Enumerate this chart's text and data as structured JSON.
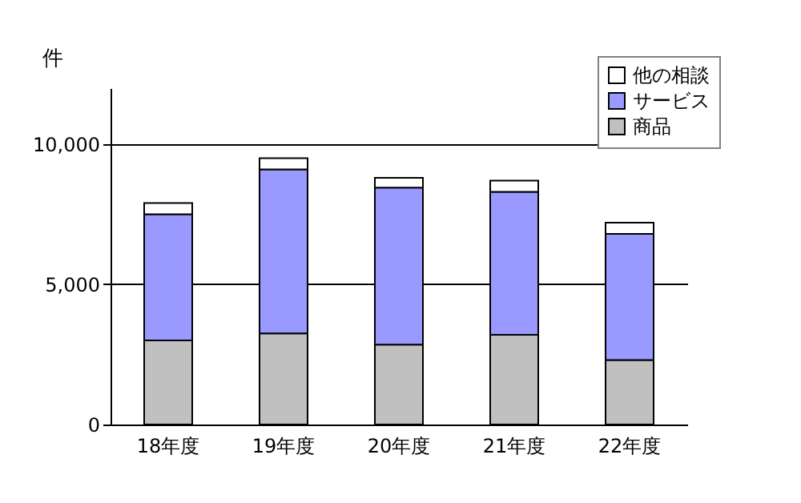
{
  "chart_data": {
    "type": "bar",
    "stacked": true,
    "ylabel": "件",
    "categories": [
      "18年度",
      "19年度",
      "20年度",
      "21年度",
      "22年度"
    ],
    "series": [
      {
        "name": "商品",
        "color": "#c0c0c0",
        "values": [
          3000,
          3250,
          2850,
          3200,
          2300
        ]
      },
      {
        "name": "サービス",
        "color": "#9999ff",
        "values": [
          4500,
          5850,
          5600,
          5100,
          4500
        ]
      },
      {
        "name": "他の相談",
        "color": "#ffffff",
        "values": [
          400,
          400,
          350,
          400,
          400
        ]
      }
    ],
    "ylim": [
      0,
      12000
    ],
    "yticks": [
      0,
      {
        "value": 5000,
        "label": "5,000"
      },
      {
        "value": 10000,
        "label": "10,000"
      }
    ],
    "grid": "y",
    "legend": "top right"
  }
}
